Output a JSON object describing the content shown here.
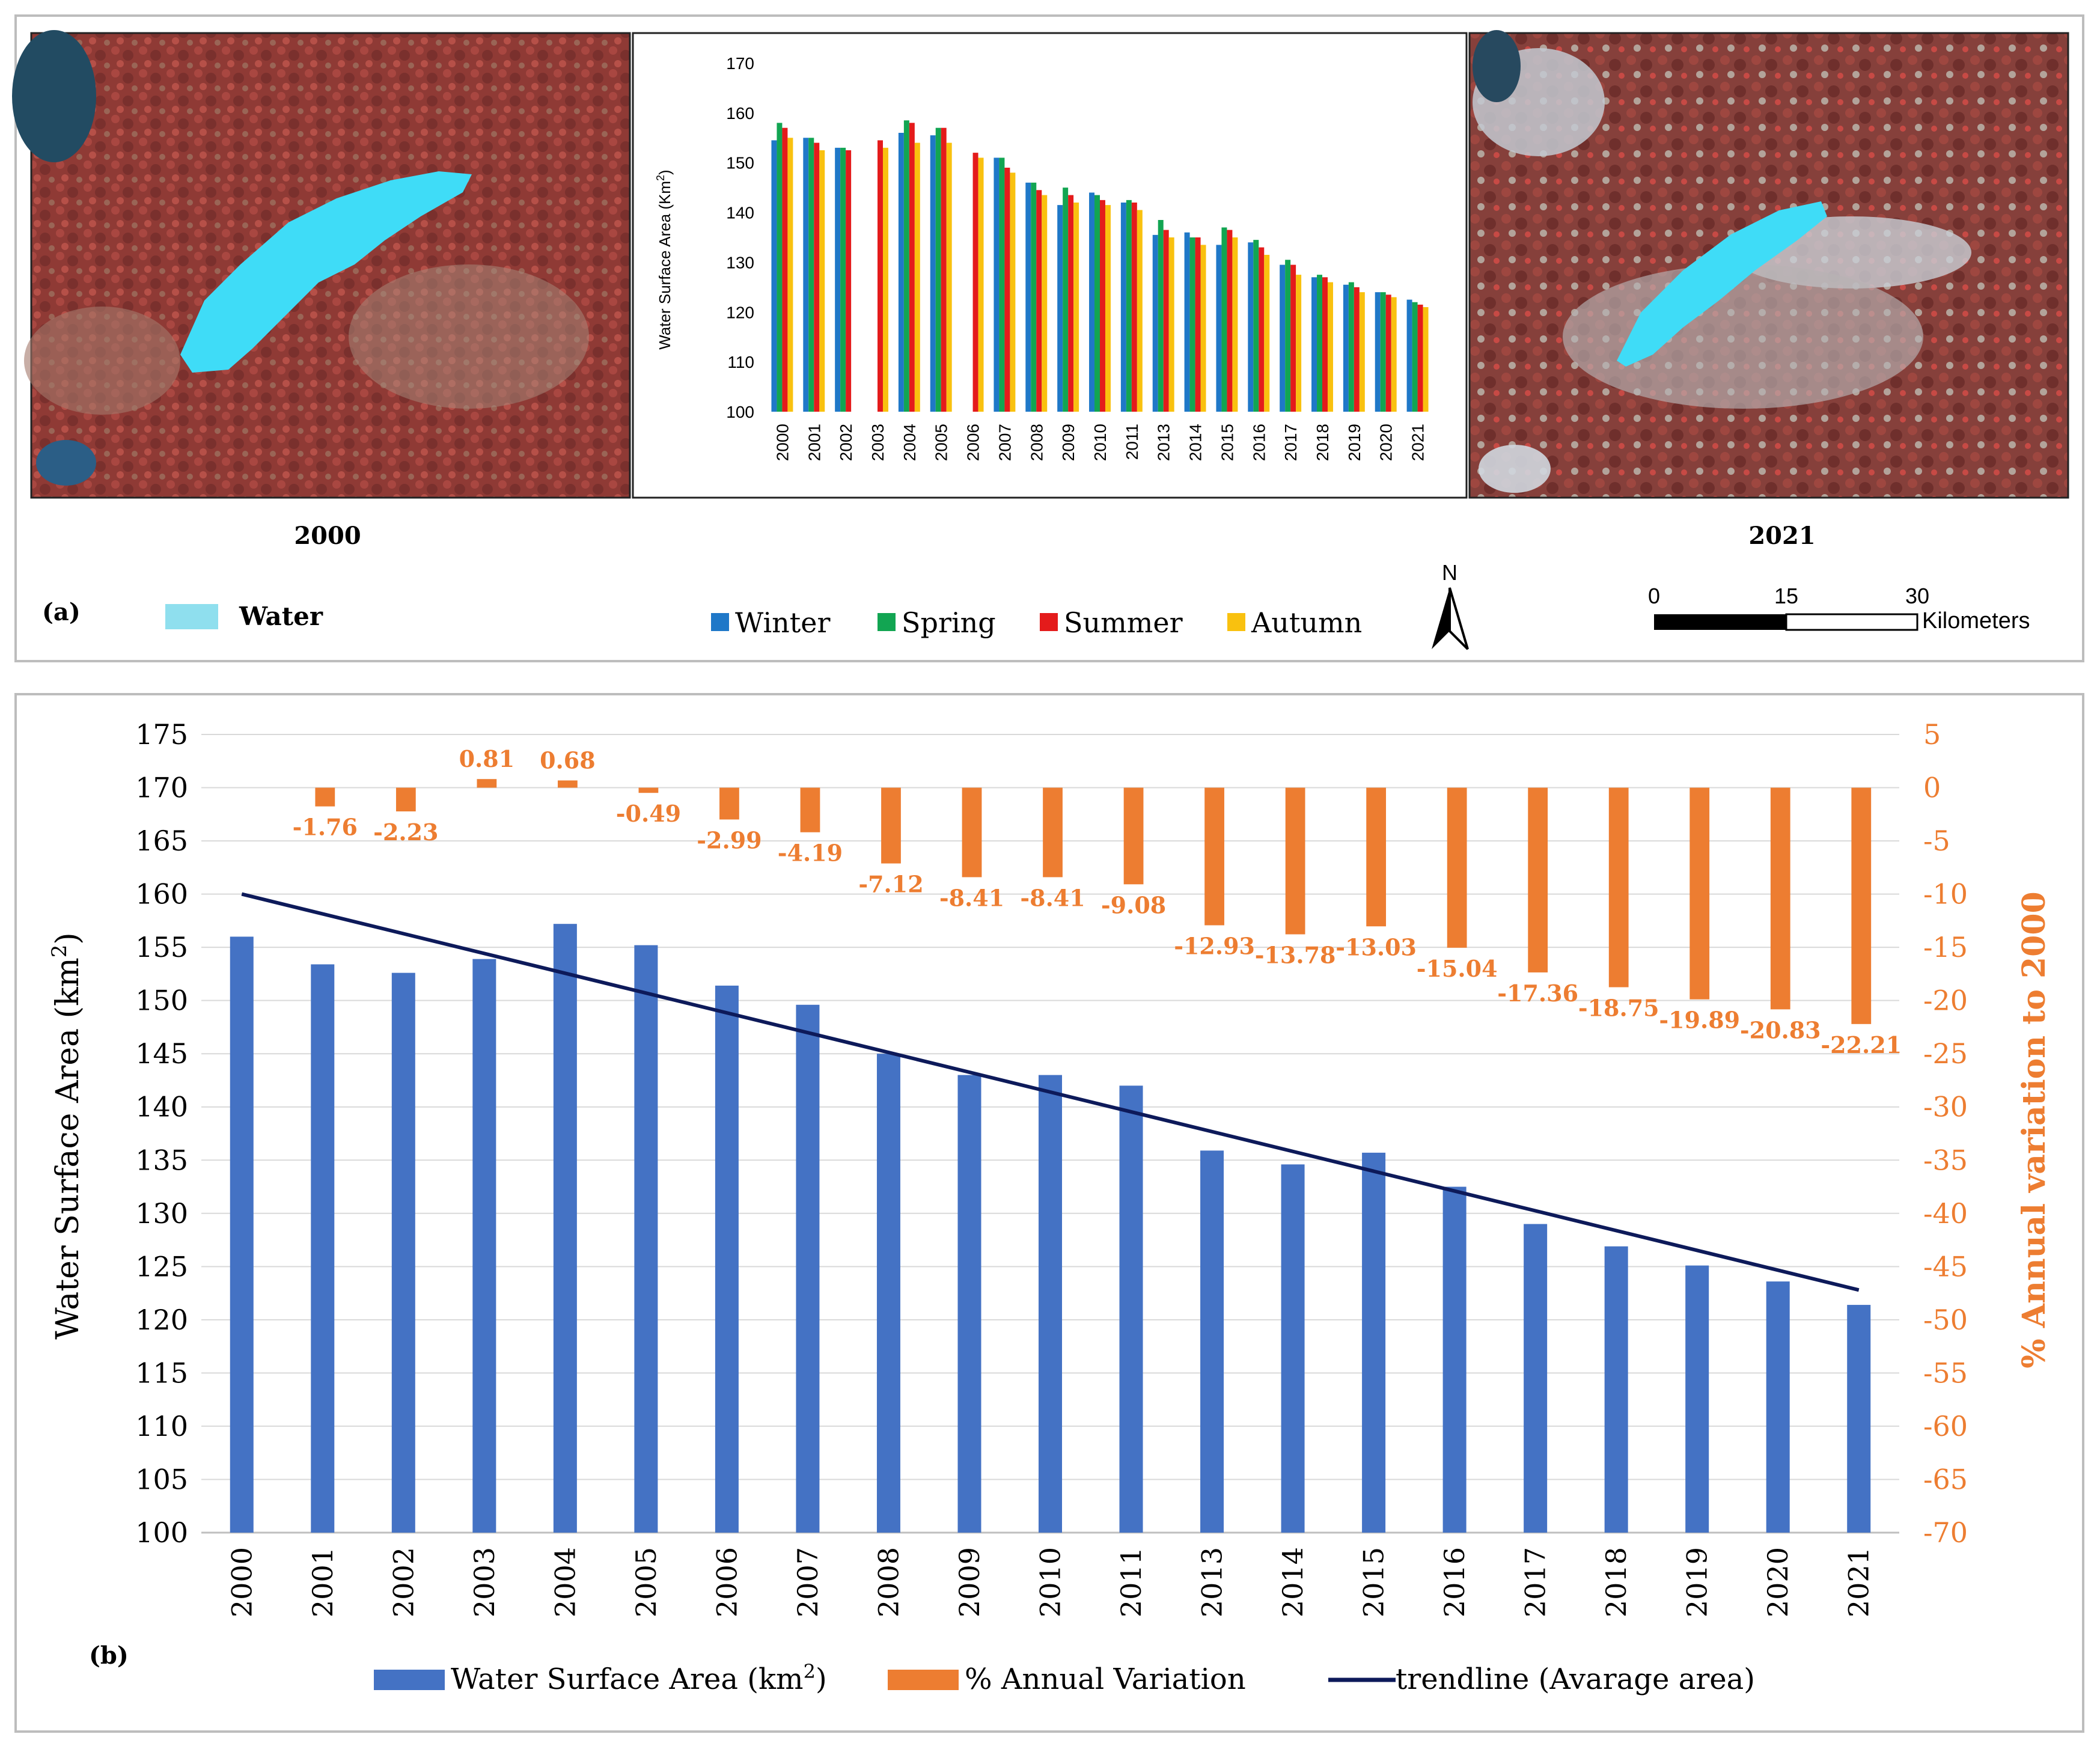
{
  "colors": {
    "winter": "#1f78c8",
    "spring": "#12a552",
    "summer": "#e41b1b",
    "autumn": "#f9c10f",
    "area_bar": "#4472c4",
    "variation_bar": "#ed7d31",
    "trendline": "#0d1a5a",
    "water": "#3fdcf7",
    "water_legend": "#8fdfee"
  },
  "panel_a": {
    "label": "(a)",
    "map_left_year": "2000",
    "map_right_year": "2021",
    "water_legend_label": "Water",
    "north_label": "N",
    "scalebar": {
      "ticks": [
        "0",
        "15",
        "30"
      ],
      "unit": "Kilometers"
    },
    "legend": [
      "Winter",
      "Spring",
      "Summer",
      "Autumn"
    ]
  },
  "panel_b": {
    "label": "(b)",
    "legend": [
      "Water Surface Area (km",
      "2",
      ")",
      "% Annual Variation",
      "trendline (Avarage area)"
    ]
  },
  "chart_data": [
    {
      "type": "bar",
      "title": "",
      "ylabel": "Water Surface Area (Km",
      "ylabel_sup": "2",
      "ylabel_end": ")",
      "ylim": [
        100,
        170
      ],
      "yticks": [
        "100",
        "110",
        "120",
        "130",
        "140",
        "150",
        "160",
        "170"
      ],
      "categories": [
        "2000",
        "2001",
        "2002",
        "2003",
        "2004",
        "2005",
        "2006",
        "2007",
        "2008",
        "2009",
        "2010",
        "2011",
        "2013",
        "2014",
        "2015",
        "2016",
        "2017",
        "2018",
        "2019",
        "2020",
        "2021"
      ],
      "series": [
        {
          "name": "Winter",
          "values": [
            154.5,
            155,
            153,
            null,
            156,
            155.5,
            null,
            151,
            146,
            141.5,
            144,
            142,
            135.5,
            136,
            133.5,
            134,
            129.5,
            127,
            125.5,
            124,
            122.5
          ]
        },
        {
          "name": "Spring",
          "values": [
            158,
            155,
            153,
            null,
            158.5,
            157,
            null,
            151,
            146,
            145,
            143.5,
            142.5,
            138.5,
            135,
            137,
            134.5,
            130.5,
            127.5,
            126,
            124,
            122
          ]
        },
        {
          "name": "Summer",
          "values": [
            157,
            154,
            152.5,
            154.5,
            158,
            157,
            152,
            149,
            144.5,
            143.5,
            142.5,
            142,
            136.5,
            135,
            136.5,
            133,
            129.5,
            127,
            125,
            123.5,
            121.5
          ]
        },
        {
          "name": "Autumn",
          "values": [
            155,
            152.5,
            null,
            153,
            154,
            154,
            151,
            148,
            143.5,
            142,
            141.5,
            140.5,
            135,
            133.5,
            135,
            131.5,
            127.5,
            126,
            124,
            123,
            121
          ]
        }
      ]
    },
    {
      "type": "bar",
      "title": "",
      "xlabel": "",
      "ylabel": "Water Surface Area (km",
      "ylabel_sup": "2",
      "ylabel_end": ")",
      "y2label": "% Annual variation to 2000",
      "ylim": [
        100,
        175
      ],
      "y2lim": [
        -70,
        5
      ],
      "yticks": [
        "100",
        "105",
        "110",
        "115",
        "120",
        "125",
        "130",
        "135",
        "140",
        "145",
        "150",
        "155",
        "160",
        "165",
        "170",
        "175"
      ],
      "y2ticks": [
        "-70",
        "-65",
        "-60",
        "-55",
        "-50",
        "-45",
        "-40",
        "-35",
        "-30",
        "-25",
        "-20",
        "-15",
        "-10",
        "-5",
        "0",
        "5"
      ],
      "categories": [
        "2000",
        "2001",
        "2002",
        "2003",
        "2004",
        "2005",
        "2006",
        "2007",
        "2008",
        "2009",
        "2010",
        "2011",
        "2013",
        "2014",
        "2015",
        "2016",
        "2017",
        "2018",
        "2019",
        "2020",
        "2021"
      ],
      "area_values": [
        156,
        153.4,
        152.6,
        153.9,
        157.2,
        155.2,
        151.4,
        149.6,
        145.0,
        143.0,
        143.0,
        142.0,
        135.9,
        134.6,
        135.7,
        132.5,
        129.0,
        126.9,
        125.1,
        123.6,
        121.4
      ],
      "variation_values": [
        null,
        -1.76,
        -2.23,
        0.81,
        0.68,
        -0.49,
        -2.99,
        -4.19,
        -7.12,
        -8.41,
        -8.41,
        -9.08,
        -12.93,
        -13.78,
        -13.03,
        -15.04,
        -17.36,
        -18.75,
        -19.89,
        -20.83,
        -22.21
      ],
      "variation_labels": [
        "",
        "-1.76",
        "-2.23",
        "0.81",
        "0.68",
        "-0.49",
        "-2.99",
        "-4.19",
        "-7.12",
        "-8.41",
        "-8.41",
        "-9.08",
        "-12.93",
        "-13.78",
        "-13.03",
        "-15.04",
        "-17.36",
        "-18.75",
        "-19.89",
        "-20.83",
        "-22.21"
      ],
      "trendline": {
        "start": 160,
        "end": 122.8
      }
    }
  ]
}
